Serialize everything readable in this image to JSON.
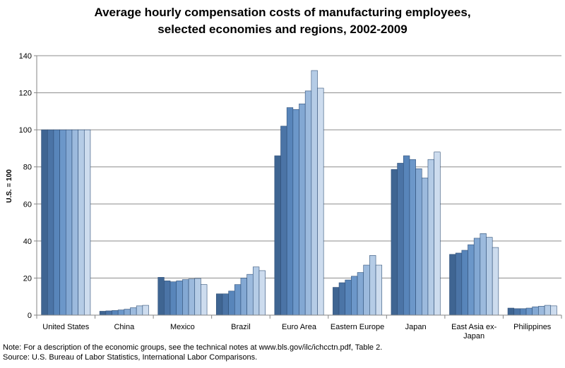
{
  "chart_data": {
    "type": "bar",
    "title_lines": [
      "Average hourly compensation costs of manufacturing employees,",
      "selected economies and regions, 2002-2009"
    ],
    "ylabel": "U.S. = 100",
    "ylim": [
      0,
      140
    ],
    "yticks": [
      0,
      20,
      40,
      60,
      80,
      100,
      120,
      140
    ],
    "grid": true,
    "categories": [
      [
        "United States"
      ],
      [
        "China"
      ],
      [
        "Mexico"
      ],
      [
        "Brazil"
      ],
      [
        "Euro Area"
      ],
      [
        "Eastern Europe"
      ],
      [
        "Japan"
      ],
      [
        "East Asia ex-",
        "Japan"
      ],
      [
        "Philippines"
      ]
    ],
    "series": [
      {
        "values": [
          100,
          2.1,
          20.4,
          11.5,
          86,
          15,
          78.6,
          32.8,
          3.8
        ],
        "color": "#3F6592"
      },
      {
        "values": [
          100,
          2.3,
          18.5,
          11.5,
          102,
          17.5,
          82,
          33.5,
          3.5
        ],
        "color": "#4B74A6"
      },
      {
        "values": [
          100,
          2.5,
          18,
          13,
          112,
          19,
          86,
          35,
          3.5
        ],
        "color": "#5885BA"
      },
      {
        "values": [
          100,
          2.8,
          18.5,
          16.5,
          111,
          21,
          84,
          38,
          3.8
        ],
        "color": "#6C97C9"
      },
      {
        "values": [
          100,
          3.2,
          19.2,
          20,
          114,
          23,
          79,
          41.5,
          4.5
        ],
        "color": "#83A8D3"
      },
      {
        "values": [
          100,
          4,
          19.5,
          22,
          121,
          27,
          74,
          44,
          4.8
        ],
        "color": "#9CBADD"
      },
      {
        "values": [
          100,
          5,
          19.8,
          26,
          132,
          32.2,
          84,
          42,
          5.3
        ],
        "color": "#B5CCE6"
      },
      {
        "values": [
          100,
          5.3,
          16.5,
          24,
          122.5,
          27,
          88,
          36.5,
          5
        ],
        "color": "#CDDCEE"
      }
    ]
  },
  "notes": {
    "note": "Note: For a description of the economic groups, see the technical notes at www.bls.gov/ilc/ichcctn.pdf, Table 2.",
    "source": "Source: U.S. Bureau of Labor Statistics, International Labor Comparisons."
  }
}
